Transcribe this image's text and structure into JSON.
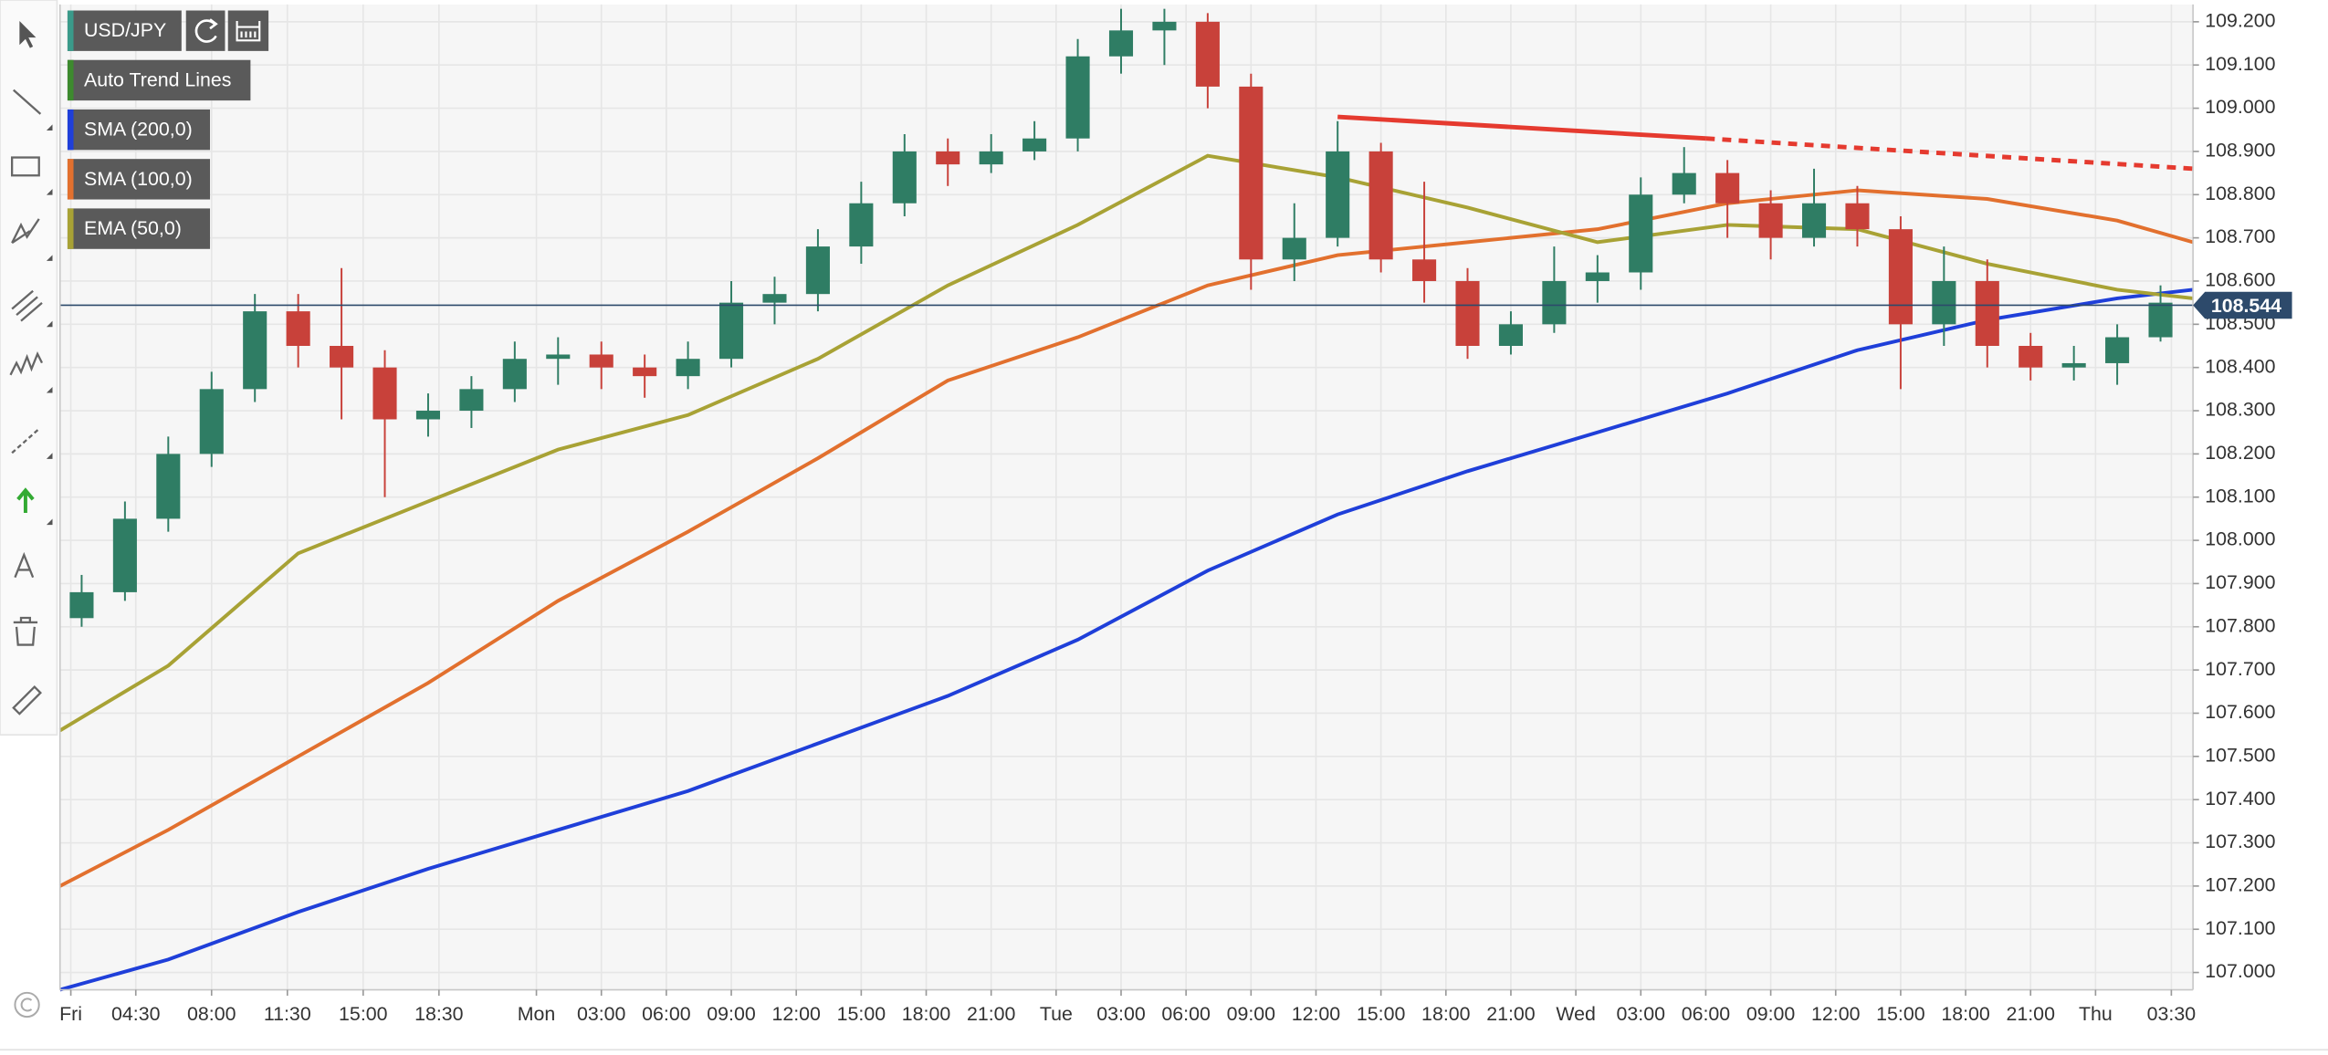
{
  "chart_data": {
    "type": "candlestick",
    "title": "USD/JPY",
    "title_color": "#3a9a8a",
    "x": [
      2,
      4,
      6,
      8,
      10,
      12,
      14,
      16,
      18,
      20,
      22,
      24,
      26,
      28,
      30,
      32,
      34,
      36,
      38,
      40,
      42,
      44,
      46,
      48,
      50,
      52,
      54,
      56,
      58,
      60,
      62,
      64,
      66,
      68,
      70,
      72,
      74,
      76,
      78,
      80,
      82,
      84,
      86,
      88,
      90,
      92,
      94,
      96,
      98
    ],
    "open": [
      107.82,
      107.88,
      108.05,
      108.2,
      108.35,
      108.53,
      108.45,
      108.4,
      108.28,
      108.3,
      108.35,
      108.42,
      108.43,
      108.4,
      108.38,
      108.42,
      108.55,
      108.57,
      108.68,
      108.78,
      108.9,
      108.87,
      108.9,
      108.93,
      109.12,
      109.18,
      109.2,
      109.05,
      108.65,
      108.7,
      108.9,
      108.65,
      108.6,
      108.45,
      108.5,
      108.6,
      108.62,
      108.8,
      108.85,
      108.78,
      108.7,
      108.78,
      108.72,
      108.5,
      108.6,
      108.45,
      108.4,
      108.41,
      108.47
    ],
    "high": [
      107.92,
      108.09,
      108.24,
      108.39,
      108.57,
      108.57,
      108.63,
      108.44,
      108.34,
      108.38,
      108.46,
      108.47,
      108.46,
      108.43,
      108.46,
      108.6,
      108.61,
      108.72,
      108.83,
      108.94,
      108.93,
      108.94,
      108.97,
      109.16,
      109.23,
      109.23,
      109.22,
      109.08,
      108.78,
      108.97,
      108.92,
      108.83,
      108.63,
      108.53,
      108.68,
      108.66,
      108.84,
      108.91,
      108.88,
      108.81,
      108.86,
      108.82,
      108.75,
      108.68,
      108.65,
      108.48,
      108.45,
      108.5,
      108.59
    ],
    "low": [
      107.8,
      107.86,
      108.02,
      108.17,
      108.32,
      108.4,
      108.28,
      108.1,
      108.24,
      108.26,
      108.32,
      108.36,
      108.35,
      108.33,
      108.35,
      108.4,
      108.5,
      108.53,
      108.64,
      108.75,
      108.82,
      108.85,
      108.88,
      108.9,
      109.08,
      109.1,
      109.0,
      108.58,
      108.6,
      108.68,
      108.62,
      108.55,
      108.42,
      108.43,
      108.48,
      108.55,
      108.58,
      108.78,
      108.7,
      108.65,
      108.68,
      108.68,
      108.35,
      108.45,
      108.4,
      108.37,
      108.37,
      108.36,
      108.46
    ],
    "close": [
      107.88,
      108.05,
      108.2,
      108.35,
      108.53,
      108.45,
      108.4,
      108.28,
      108.3,
      108.35,
      108.42,
      108.43,
      108.4,
      108.38,
      108.42,
      108.55,
      108.57,
      108.68,
      108.78,
      108.9,
      108.87,
      108.9,
      108.93,
      109.12,
      109.18,
      109.2,
      109.05,
      108.65,
      108.7,
      108.9,
      108.65,
      108.6,
      108.45,
      108.5,
      108.6,
      108.62,
      108.8,
      108.85,
      108.78,
      108.7,
      108.78,
      108.72,
      108.5,
      108.6,
      108.45,
      108.4,
      108.41,
      108.47,
      108.55
    ],
    "up_color": "#2f7d64",
    "down_color": "#c8413a",
    "xlim": [
      1,
      99.5
    ],
    "xticks": [
      {
        "value": 1.5,
        "label": "Fri"
      },
      {
        "value": 4.5,
        "label": "04:30"
      },
      {
        "value": 8,
        "label": "08:00"
      },
      {
        "value": 11.5,
        "label": "11:30"
      },
      {
        "value": 15,
        "label": "15:00"
      },
      {
        "value": 18.5,
        "label": "18:30"
      },
      {
        "value": 23,
        "label": "Mon"
      },
      {
        "value": 26,
        "label": "03:00"
      },
      {
        "value": 29,
        "label": "06:00"
      },
      {
        "value": 32,
        "label": "09:00"
      },
      {
        "value": 35,
        "label": "12:00"
      },
      {
        "value": 38,
        "label": "15:00"
      },
      {
        "value": 41,
        "label": "18:00"
      },
      {
        "value": 44,
        "label": "21:00"
      },
      {
        "value": 47,
        "label": "Tue"
      },
      {
        "value": 50,
        "label": "03:00"
      },
      {
        "value": 53,
        "label": "06:00"
      },
      {
        "value": 56,
        "label": "09:00"
      },
      {
        "value": 59,
        "label": "12:00"
      },
      {
        "value": 62,
        "label": "15:00"
      },
      {
        "value": 65,
        "label": "18:00"
      },
      {
        "value": 68,
        "label": "21:00"
      },
      {
        "value": 71,
        "label": "Wed"
      },
      {
        "value": 74,
        "label": "03:00"
      },
      {
        "value": 77,
        "label": "06:00"
      },
      {
        "value": 80,
        "label": "09:00"
      },
      {
        "value": 83,
        "label": "12:00"
      },
      {
        "value": 86,
        "label": "15:00"
      },
      {
        "value": 89,
        "label": "18:00"
      },
      {
        "value": 92,
        "label": "21:00"
      },
      {
        "value": 95,
        "label": "Thu"
      },
      {
        "value": 98.5,
        "label": "03:30"
      }
    ],
    "ylim": [
      106.96,
      109.24
    ],
    "yticks": [
      {
        "value": 107.0,
        "label": "107.000"
      },
      {
        "value": 107.1,
        "label": "107.100"
      },
      {
        "value": 107.2,
        "label": "107.200"
      },
      {
        "value": 107.3,
        "label": "107.300"
      },
      {
        "value": 107.4,
        "label": "107.400"
      },
      {
        "value": 107.5,
        "label": "107.500"
      },
      {
        "value": 107.6,
        "label": "107.600"
      },
      {
        "value": 107.7,
        "label": "107.700"
      },
      {
        "value": 107.8,
        "label": "107.800"
      },
      {
        "value": 107.9,
        "label": "107.900"
      },
      {
        "value": 108.0,
        "label": "108.000"
      },
      {
        "value": 108.1,
        "label": "108.100"
      },
      {
        "value": 108.2,
        "label": "108.200"
      },
      {
        "value": 108.3,
        "label": "108.300"
      },
      {
        "value": 108.4,
        "label": "108.400"
      },
      {
        "value": 108.5,
        "label": "108.500"
      },
      {
        "value": 108.6,
        "label": "108.600"
      },
      {
        "value": 108.7,
        "label": "108.700"
      },
      {
        "value": 108.8,
        "label": "108.800"
      },
      {
        "value": 108.9,
        "label": "108.900"
      },
      {
        "value": 109.0,
        "label": "109.000"
      },
      {
        "value": 109.1,
        "label": "109.100"
      },
      {
        "value": 109.2,
        "label": "109.200"
      }
    ],
    "grid": true,
    "last_price": 108.544,
    "last_price_color": "#2d4a6b",
    "trend_line": {
      "name": "Auto Trend Lines",
      "legend_color": "#3d8a2e",
      "color": "#e53a2f",
      "x": [
        60,
        77
      ],
      "values": [
        108.98,
        108.93
      ],
      "extension_x": [
        77,
        99.5
      ],
      "extension_values": [
        108.93,
        108.86
      ]
    },
    "series": [
      {
        "name": "SMA (200,0)",
        "color": "#1f3fd9",
        "x": [
          1,
          6,
          12,
          18,
          24,
          30,
          36,
          42,
          48,
          54,
          60,
          66,
          72,
          78,
          84,
          90,
          96,
          99.5
        ],
        "values": [
          106.96,
          107.03,
          107.14,
          107.24,
          107.33,
          107.42,
          107.53,
          107.64,
          107.77,
          107.93,
          108.06,
          108.16,
          108.25,
          108.34,
          108.44,
          108.51,
          108.56,
          108.58
        ]
      },
      {
        "name": "SMA (100,0)",
        "color": "#e2702e",
        "x": [
          1,
          6,
          12,
          18,
          24,
          30,
          36,
          42,
          48,
          54,
          60,
          66,
          72,
          78,
          84,
          90,
          96,
          99.5
        ],
        "values": [
          107.2,
          107.33,
          107.5,
          107.67,
          107.86,
          108.02,
          108.19,
          108.37,
          108.47,
          108.59,
          108.66,
          108.69,
          108.72,
          108.78,
          108.81,
          108.79,
          108.74,
          108.69
        ]
      },
      {
        "name": "EMA (50,0)",
        "color": "#a8a235",
        "x": [
          1,
          6,
          12,
          18,
          24,
          30,
          36,
          42,
          48,
          54,
          60,
          66,
          72,
          78,
          84,
          90,
          96,
          99.5
        ],
        "values": [
          107.56,
          107.71,
          107.97,
          108.09,
          108.21,
          108.29,
          108.42,
          108.59,
          108.73,
          108.89,
          108.84,
          108.77,
          108.69,
          108.73,
          108.72,
          108.64,
          108.58,
          108.56
        ]
      }
    ]
  }
}
